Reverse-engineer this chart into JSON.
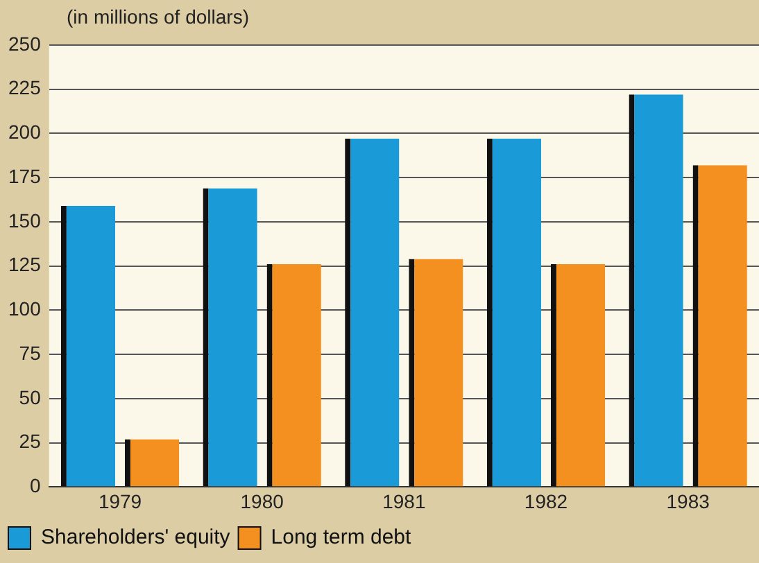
{
  "chart_data": {
    "type": "bar",
    "ylabel": "(in millions of dollars)",
    "categories": [
      "1979",
      "1980",
      "1981",
      "1982",
      "1983"
    ],
    "series": [
      {
        "name": "Shareholders' equity",
        "color": "#1a9ad6",
        "values": [
          159,
          169,
          197,
          197,
          222
        ]
      },
      {
        "name": "Long term debt",
        "color": "#f39020",
        "values": [
          27,
          126,
          129,
          126,
          182
        ]
      }
    ],
    "ylim": [
      0,
      250
    ],
    "yticks": [
      0,
      25,
      50,
      75,
      100,
      125,
      150,
      175,
      200,
      225,
      250
    ],
    "grid": "y",
    "legend": "bottom left"
  }
}
